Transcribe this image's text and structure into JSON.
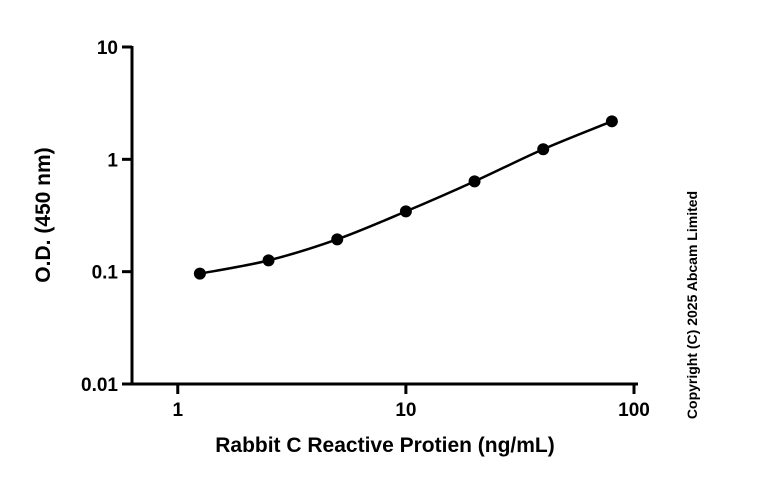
{
  "chart_data": {
    "type": "scatter",
    "x_label": "Rabbit C Reactive Protien (ng/mL)",
    "y_label": "O.D. (450 nm)",
    "annotation": "Copyright (C) 2025 Abcam Limited",
    "x": [
      1.25,
      2.5,
      5,
      10,
      20,
      40,
      80
    ],
    "series": [
      {
        "color": "#000000",
        "values": [
          0.096,
          0.126,
          0.194,
          0.344,
          0.637,
          1.23,
          2.18
        ]
      }
    ],
    "xlim": [
      0.63,
      100
    ],
    "xticks": [
      1,
      10,
      100
    ],
    "xscale": "log",
    "ylim": [
      0.01,
      10
    ],
    "yticks": [
      0.01,
      0.1,
      1,
      10
    ],
    "yscale": "log",
    "grid": false
  }
}
